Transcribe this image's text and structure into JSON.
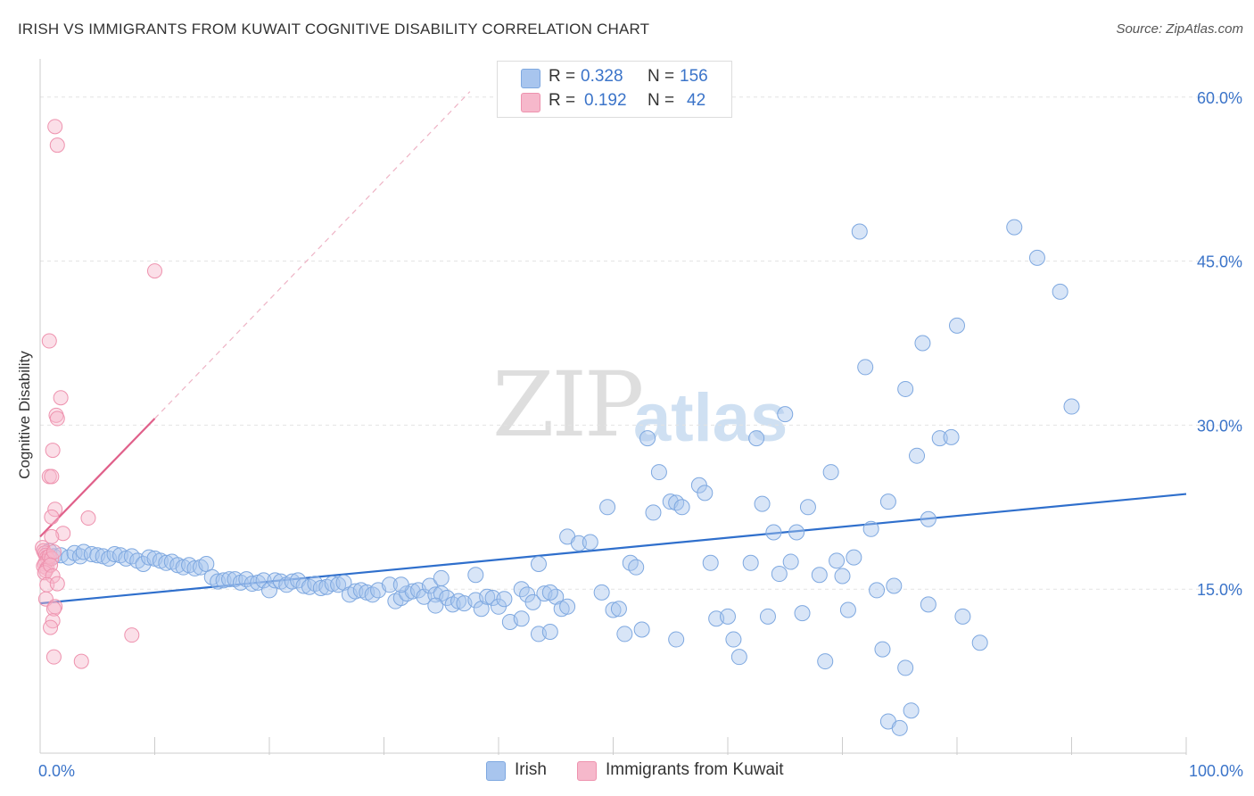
{
  "header": {
    "title": "IRISH VS IMMIGRANTS FROM KUWAIT COGNITIVE DISABILITY CORRELATION CHART",
    "source": "Source: ZipAtlas.com"
  },
  "watermark": {
    "zip": "ZIP",
    "atlas": "atlas"
  },
  "legend": {
    "rows": [
      {
        "r_label": "R =",
        "r_value": "0.328",
        "n_label": "N =",
        "n_value": "156",
        "color": "#a8c5ee"
      },
      {
        "r_label": "R =",
        "r_value": "0.192",
        "n_label": "N =",
        "n_value": "42",
        "color": "#f6b8cb"
      }
    ]
  },
  "bottom_legend": [
    {
      "label": "Irish",
      "color": "#a8c5ee"
    },
    {
      "label": "Immigrants from Kuwait",
      "color": "#f6b8cb"
    }
  ],
  "colors": {
    "irish_fill": "rgba(168,197,238,0.45)",
    "irish_stroke": "#7ea8e0",
    "irish_line": "#2f6fcc",
    "kuwait_fill": "rgba(246,184,203,0.45)",
    "kuwait_stroke": "#ee92ae",
    "kuwait_line": "#e0608a",
    "axis_text": "#3b74c9",
    "grid": "#e3e3e3"
  },
  "chart_data": {
    "type": "scatter",
    "title": "IRISH VS IMMIGRANTS FROM KUWAIT COGNITIVE DISABILITY CORRELATION CHART",
    "xlabel": "",
    "ylabel": "Cognitive Disability",
    "xlim": [
      0,
      100
    ],
    "ylim": [
      0,
      63
    ],
    "x_tick_labels": [
      {
        "value": 0,
        "label": "0.0%"
      },
      {
        "value": 100,
        "label": "100.0%"
      }
    ],
    "y_tick_labels": [
      {
        "value": 15,
        "label": "15.0%"
      },
      {
        "value": 30,
        "label": "30.0%"
      },
      {
        "value": 45,
        "label": "45.0%"
      },
      {
        "value": 60,
        "label": "60.0%"
      }
    ],
    "x_minor_ticks": [
      10,
      20,
      30,
      40,
      50,
      60,
      70,
      80,
      90,
      100
    ],
    "series": [
      {
        "name": "Irish",
        "R": 0.328,
        "N": 156,
        "trend": {
          "x": [
            0,
            100
          ],
          "y": [
            13.7,
            23.7
          ],
          "style": "solid"
        },
        "points": [
          [
            0.8,
            18.5
          ],
          [
            1.2,
            18.0
          ],
          [
            1.8,
            18.1
          ],
          [
            2.5,
            17.9
          ],
          [
            3.0,
            18.3
          ],
          [
            3.5,
            18.0
          ],
          [
            3.8,
            18.4
          ],
          [
            4.5,
            18.2
          ],
          [
            5.0,
            18.1
          ],
          [
            5.5,
            18.0
          ],
          [
            6.0,
            17.8
          ],
          [
            6.5,
            18.2
          ],
          [
            7.0,
            18.1
          ],
          [
            7.5,
            17.8
          ],
          [
            8.0,
            18.0
          ],
          [
            8.5,
            17.6
          ],
          [
            9.0,
            17.3
          ],
          [
            9.5,
            17.9
          ],
          [
            10.0,
            17.8
          ],
          [
            10.5,
            17.6
          ],
          [
            11.0,
            17.4
          ],
          [
            11.5,
            17.5
          ],
          [
            12.0,
            17.2
          ],
          [
            12.5,
            17.0
          ],
          [
            13.0,
            17.2
          ],
          [
            13.5,
            16.9
          ],
          [
            14.0,
            17.0
          ],
          [
            14.5,
            17.3
          ],
          [
            15.0,
            16.1
          ],
          [
            15.5,
            15.7
          ],
          [
            16.0,
            15.8
          ],
          [
            16.5,
            15.9
          ],
          [
            17.0,
            15.9
          ],
          [
            17.5,
            15.6
          ],
          [
            18.0,
            15.9
          ],
          [
            18.5,
            15.5
          ],
          [
            19.0,
            15.6
          ],
          [
            19.5,
            15.8
          ],
          [
            20.0,
            14.9
          ],
          [
            20.5,
            15.8
          ],
          [
            21.0,
            15.7
          ],
          [
            21.5,
            15.4
          ],
          [
            22.0,
            15.7
          ],
          [
            22.5,
            15.8
          ],
          [
            23.0,
            15.3
          ],
          [
            23.5,
            15.2
          ],
          [
            24.0,
            15.5
          ],
          [
            24.5,
            15.1
          ],
          [
            25.0,
            15.2
          ],
          [
            25.5,
            15.5
          ],
          [
            26.0,
            15.4
          ],
          [
            26.5,
            15.6
          ],
          [
            27.0,
            14.5
          ],
          [
            27.5,
            14.8
          ],
          [
            28.0,
            14.9
          ],
          [
            28.5,
            14.7
          ],
          [
            29.0,
            14.5
          ],
          [
            29.5,
            14.9
          ],
          [
            30.5,
            15.4
          ],
          [
            31.0,
            13.9
          ],
          [
            31.5,
            14.2
          ],
          [
            32.0,
            14.6
          ],
          [
            32.5,
            14.8
          ],
          [
            33.0,
            14.9
          ],
          [
            33.5,
            14.3
          ],
          [
            34.0,
            15.3
          ],
          [
            34.5,
            14.5
          ],
          [
            35.0,
            14.6
          ],
          [
            35.5,
            14.2
          ],
          [
            36.0,
            13.6
          ],
          [
            36.5,
            13.9
          ],
          [
            37.0,
            13.7
          ],
          [
            31.5,
            15.4
          ],
          [
            34.5,
            13.5
          ],
          [
            38.0,
            14.0
          ],
          [
            38.5,
            13.2
          ],
          [
            39.0,
            14.3
          ],
          [
            39.5,
            14.2
          ],
          [
            40.0,
            13.4
          ],
          [
            40.5,
            14.1
          ],
          [
            41.0,
            12.0
          ],
          [
            42.0,
            15.0
          ],
          [
            42.5,
            14.5
          ],
          [
            43.0,
            13.8
          ],
          [
            43.5,
            10.9
          ],
          [
            44.0,
            14.6
          ],
          [
            44.5,
            11.1
          ],
          [
            45.0,
            14.3
          ],
          [
            45.5,
            13.2
          ],
          [
            46.0,
            13.4
          ],
          [
            35.0,
            16.0
          ],
          [
            38.0,
            16.3
          ],
          [
            42.0,
            12.3
          ],
          [
            43.5,
            17.3
          ],
          [
            44.5,
            14.7
          ],
          [
            46.0,
            19.8
          ],
          [
            47.0,
            19.2
          ],
          [
            48.0,
            19.3
          ],
          [
            49.0,
            14.7
          ],
          [
            49.5,
            22.5
          ],
          [
            50.0,
            13.1
          ],
          [
            50.5,
            13.2
          ],
          [
            51.0,
            10.9
          ],
          [
            51.5,
            17.4
          ],
          [
            52.0,
            17.0
          ],
          [
            52.5,
            11.3
          ],
          [
            53.0,
            28.8
          ],
          [
            53.5,
            22.0
          ],
          [
            54.0,
            25.7
          ],
          [
            55.0,
            23.0
          ],
          [
            55.5,
            22.9
          ],
          [
            56.0,
            22.5
          ],
          [
            55.5,
            10.4
          ],
          [
            57.5,
            24.5
          ],
          [
            58.0,
            23.8
          ],
          [
            58.5,
            17.4
          ],
          [
            59.0,
            12.3
          ],
          [
            60.0,
            12.5
          ],
          [
            60.5,
            10.4
          ],
          [
            61.0,
            8.8
          ],
          [
            62.0,
            17.4
          ],
          [
            62.5,
            28.8
          ],
          [
            63.0,
            22.8
          ],
          [
            63.5,
            12.5
          ],
          [
            64.0,
            20.2
          ],
          [
            64.5,
            16.4
          ],
          [
            65.0,
            31.0
          ],
          [
            65.5,
            17.5
          ],
          [
            66.0,
            20.2
          ],
          [
            66.5,
            12.8
          ],
          [
            67.0,
            22.5
          ],
          [
            68.0,
            16.3
          ],
          [
            68.5,
            8.4
          ],
          [
            69.0,
            25.7
          ],
          [
            69.5,
            17.6
          ],
          [
            70.0,
            16.2
          ],
          [
            70.5,
            13.1
          ],
          [
            71.0,
            17.9
          ],
          [
            71.5,
            47.7
          ],
          [
            72.0,
            35.3
          ],
          [
            72.5,
            20.5
          ],
          [
            73.0,
            14.9
          ],
          [
            73.5,
            9.5
          ],
          [
            74.0,
            23.0
          ],
          [
            74.5,
            15.3
          ],
          [
            75.5,
            33.3
          ],
          [
            75.5,
            7.8
          ],
          [
            76.5,
            27.2
          ],
          [
            77.0,
            37.5
          ],
          [
            77.5,
            21.4
          ],
          [
            77.5,
            13.6
          ],
          [
            78.5,
            28.8
          ],
          [
            79.5,
            28.9
          ],
          [
            80.0,
            39.1
          ],
          [
            80.5,
            12.5
          ],
          [
            82.0,
            10.1
          ],
          [
            85.0,
            48.1
          ],
          [
            74.0,
            2.9
          ],
          [
            75.0,
            2.3
          ],
          [
            76.0,
            3.9
          ],
          [
            87.0,
            45.3
          ],
          [
            89.0,
            42.2
          ],
          [
            90.0,
            31.7
          ]
        ]
      },
      {
        "name": "Immigrants from Kuwait",
        "R": 0.192,
        "N": 42,
        "trend": {
          "x": [
            0,
            10
          ],
          "y": [
            19.8,
            30.6
          ],
          "style": "solid"
        },
        "trend_extension": {
          "x": [
            10,
            37.5
          ],
          "y": [
            30.6,
            60.5
          ],
          "style": "dashed"
        },
        "points": [
          [
            1.3,
            57.3
          ],
          [
            1.5,
            55.6
          ],
          [
            10.0,
            44.1
          ],
          [
            0.8,
            37.7
          ],
          [
            1.8,
            32.5
          ],
          [
            1.4,
            30.9
          ],
          [
            1.5,
            30.6
          ],
          [
            1.1,
            27.7
          ],
          [
            0.8,
            25.3
          ],
          [
            1.0,
            25.3
          ],
          [
            1.3,
            22.3
          ],
          [
            1.0,
            21.6
          ],
          [
            4.2,
            21.5
          ],
          [
            2.0,
            20.1
          ],
          [
            0.2,
            18.8
          ],
          [
            0.3,
            18.5
          ],
          [
            0.4,
            18.3
          ],
          [
            0.5,
            18.1
          ],
          [
            0.6,
            17.9
          ],
          [
            0.7,
            17.7
          ],
          [
            0.5,
            17.5
          ],
          [
            0.4,
            17.3
          ],
          [
            0.3,
            17.1
          ],
          [
            0.6,
            16.9
          ],
          [
            0.5,
            16.7
          ],
          [
            0.4,
            16.5
          ],
          [
            0.8,
            18.0
          ],
          [
            1.0,
            17.8
          ],
          [
            1.2,
            18.4
          ],
          [
            0.9,
            17.2
          ],
          [
            1.0,
            19.8
          ],
          [
            1.1,
            16.2
          ],
          [
            0.6,
            15.4
          ],
          [
            1.5,
            15.5
          ],
          [
            0.5,
            14.1
          ],
          [
            1.3,
            13.4
          ],
          [
            1.2,
            13.2
          ],
          [
            1.1,
            12.1
          ],
          [
            0.9,
            11.5
          ],
          [
            8.0,
            10.8
          ],
          [
            1.2,
            8.8
          ],
          [
            3.6,
            8.4
          ]
        ]
      }
    ]
  }
}
